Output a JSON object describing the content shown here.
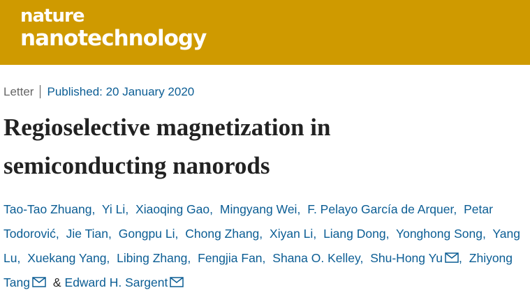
{
  "header": {
    "journal_line1": "nature",
    "journal_line2": "nanotechnology"
  },
  "article": {
    "type": "Letter",
    "published": "Published: 20 January 2020",
    "title": "Regioselective magnetization in semiconducting nanorods",
    "author_separator": ",",
    "last_author_separator": "&",
    "authors": [
      {
        "name": "Tao-Tao Zhuang",
        "corresponding": false
      },
      {
        "name": "Yi Li",
        "corresponding": false
      },
      {
        "name": "Xiaoqing Gao",
        "corresponding": false
      },
      {
        "name": "Mingyang Wei",
        "corresponding": false
      },
      {
        "name": "F. Pelayo García de Arquer",
        "corresponding": false
      },
      {
        "name": "Petar Todorović",
        "corresponding": false
      },
      {
        "name": "Jie Tian",
        "corresponding": false
      },
      {
        "name": "Gongpu Li",
        "corresponding": false
      },
      {
        "name": "Chong Zhang",
        "corresponding": false
      },
      {
        "name": "Xiyan Li",
        "corresponding": false
      },
      {
        "name": "Liang Dong",
        "corresponding": false
      },
      {
        "name": "Yonghong Song",
        "corresponding": false
      },
      {
        "name": "Yang Lu",
        "corresponding": false
      },
      {
        "name": "Xuekang Yang",
        "corresponding": false
      },
      {
        "name": "Libing Zhang",
        "corresponding": false
      },
      {
        "name": "Fengjia Fan",
        "corresponding": false
      },
      {
        "name": "Shana O. Kelley",
        "corresponding": false
      },
      {
        "name": "Shu-Hong Yu",
        "corresponding": true
      },
      {
        "name": "Zhiyong Tang",
        "corresponding": true
      },
      {
        "name": "Edward H. Sargent",
        "corresponding": true
      }
    ]
  }
}
